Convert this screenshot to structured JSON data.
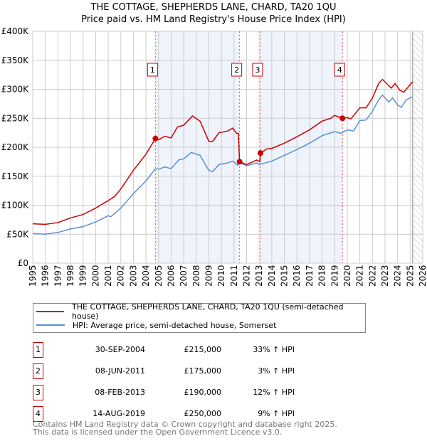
{
  "title": "THE COTTAGE, SHEPHERDS LANE, CHARD, TA20 1QU",
  "subtitle": "Price paid vs. HM Land Registry's House Price Index (HPI)",
  "chart_data": {
    "type": "line",
    "title": "THE COTTAGE, SHEPHERDS LANE, CHARD, TA20 1QU",
    "xlim": [
      1995,
      2026
    ],
    "ylim": [
      0,
      400000
    ],
    "x_ticks": [
      "1995",
      "1996",
      "1997",
      "1998",
      "1999",
      "2000",
      "2001",
      "2002",
      "2003",
      "2004",
      "2005",
      "2006",
      "2007",
      "2008",
      "2009",
      "2010",
      "2011",
      "2012",
      "2013",
      "2014",
      "2015",
      "2016",
      "2017",
      "2018",
      "2019",
      "2020",
      "2021",
      "2022",
      "2023",
      "2024",
      "2025",
      "2026"
    ],
    "y_ticks": [
      {
        "v": 0,
        "label": "£0"
      },
      {
        "v": 50000,
        "label": "£50K"
      },
      {
        "v": 100000,
        "label": "£100K"
      },
      {
        "v": 150000,
        "label": "£150K"
      },
      {
        "v": 200000,
        "label": "£200K"
      },
      {
        "v": 250000,
        "label": "£250K"
      },
      {
        "v": 300000,
        "label": "£300K"
      },
      {
        "v": 350000,
        "label": "£350K"
      },
      {
        "v": 400000,
        "label": "£400K"
      }
    ],
    "grid": true,
    "shaded_ranges": [
      [
        2004.75,
        2011.44
      ],
      [
        2013.1,
        2019.62
      ]
    ],
    "forecast_from": 2025.2,
    "series": [
      {
        "name": "THE COTTAGE, SHEPHERDS LANE, CHARD, TA20 1QU (semi-detached house)",
        "color": "#cc0000",
        "points": [
          [
            1995,
            68
          ],
          [
            1996,
            67
          ],
          [
            1997,
            70
          ],
          [
            1998,
            78
          ],
          [
            1999,
            84
          ],
          [
            2000,
            95
          ],
          [
            2001,
            108
          ],
          [
            2001.5,
            115
          ],
          [
            2002,
            128
          ],
          [
            2003,
            160
          ],
          [
            2004,
            188
          ],
          [
            2004.75,
            215
          ],
          [
            2005,
            213
          ],
          [
            2005.5,
            219
          ],
          [
            2006,
            216
          ],
          [
            2006.5,
            235
          ],
          [
            2007,
            238
          ],
          [
            2007.7,
            254
          ],
          [
            2008.3,
            245
          ],
          [
            2009,
            210
          ],
          [
            2009.3,
            210
          ],
          [
            2009.8,
            225
          ],
          [
            2010.5,
            228
          ],
          [
            2010.9,
            233
          ],
          [
            2011.2,
            224
          ],
          [
            2011.35,
            224
          ],
          [
            2011.44,
            175
          ],
          [
            2012,
            170
          ],
          [
            2012.8,
            178
          ],
          [
            2013.05,
            175
          ],
          [
            2013.1,
            190
          ],
          [
            2013.6,
            197
          ],
          [
            2014,
            198
          ],
          [
            2015,
            207
          ],
          [
            2016,
            218
          ],
          [
            2017,
            230
          ],
          [
            2018,
            245
          ],
          [
            2018.7,
            250
          ],
          [
            2019,
            255
          ],
          [
            2019.62,
            250
          ],
          [
            2020,
            251
          ],
          [
            2020.3,
            249
          ],
          [
            2021,
            268
          ],
          [
            2021.5,
            268
          ],
          [
            2022,
            285
          ],
          [
            2022.5,
            310
          ],
          [
            2022.8,
            317
          ],
          [
            2023.5,
            302
          ],
          [
            2023.8,
            310
          ],
          [
            2024.2,
            298
          ],
          [
            2024.5,
            295
          ],
          [
            2025,
            308
          ],
          [
            2025.2,
            313
          ]
        ]
      },
      {
        "name": "HPI: Average price, semi-detached house, Somerset",
        "color": "#5b8fd4",
        "points": [
          [
            1995,
            51
          ],
          [
            1996,
            50
          ],
          [
            1997,
            53
          ],
          [
            1998,
            59
          ],
          [
            1999,
            63
          ],
          [
            2000,
            71
          ],
          [
            2001,
            82
          ],
          [
            2001.2,
            80
          ],
          [
            2002,
            95
          ],
          [
            2003,
            120
          ],
          [
            2004,
            142
          ],
          [
            2004.75,
            163
          ],
          [
            2005,
            162
          ],
          [
            2005.5,
            166
          ],
          [
            2006,
            163
          ],
          [
            2006.6,
            178
          ],
          [
            2007,
            180
          ],
          [
            2007.6,
            191
          ],
          [
            2008.3,
            186
          ],
          [
            2009,
            160
          ],
          [
            2009.3,
            158
          ],
          [
            2009.8,
            170
          ],
          [
            2010.5,
            173
          ],
          [
            2010.9,
            176
          ],
          [
            2011.3,
            169
          ],
          [
            2011.5,
            173
          ],
          [
            2012,
            168
          ],
          [
            2012.8,
            173
          ],
          [
            2013,
            170
          ],
          [
            2014,
            176
          ],
          [
            2015,
            186
          ],
          [
            2016,
            196
          ],
          [
            2017,
            207
          ],
          [
            2018,
            220
          ],
          [
            2019,
            227
          ],
          [
            2019.5,
            224
          ],
          [
            2020,
            230
          ],
          [
            2020.5,
            228
          ],
          [
            2021,
            246
          ],
          [
            2021.5,
            247
          ],
          [
            2022,
            262
          ],
          [
            2022.5,
            282
          ],
          [
            2022.8,
            290
          ],
          [
            2023.3,
            278
          ],
          [
            2023.6,
            285
          ],
          [
            2024,
            273
          ],
          [
            2024.3,
            269
          ],
          [
            2024.7,
            282
          ],
          [
            2025.2,
            287
          ]
        ]
      }
    ],
    "sales": [
      {
        "label": "1",
        "x": 2004.75,
        "y": 215
      },
      {
        "label": "2",
        "x": 2011.44,
        "y": 175
      },
      {
        "label": "3",
        "x": 2013.1,
        "y": 190
      },
      {
        "label": "4",
        "x": 2019.62,
        "y": 250
      }
    ]
  },
  "legend": {
    "property": "THE COTTAGE, SHEPHERDS LANE, CHARD, TA20 1QU (semi-detached house)",
    "hpi": "HPI: Average price, semi-detached house, Somerset"
  },
  "transactions": [
    {
      "num": "1",
      "date": "30-SEP-2004",
      "price": "£215,000",
      "hpi": "33% ↑ HPI"
    },
    {
      "num": "2",
      "date": "08-JUN-2011",
      "price": "£175,000",
      "hpi": "3% ↑ HPI"
    },
    {
      "num": "3",
      "date": "08-FEB-2013",
      "price": "£190,000",
      "hpi": "12% ↑ HPI"
    },
    {
      "num": "4",
      "date": "14-AUG-2019",
      "price": "£250,000",
      "hpi": "9% ↑ HPI"
    }
  ],
  "footer": {
    "line1": "Contains HM Land Registry data © Crown copyright and database right 2025.",
    "line2": "This data is licensed under the Open Government Licence v3.0."
  }
}
